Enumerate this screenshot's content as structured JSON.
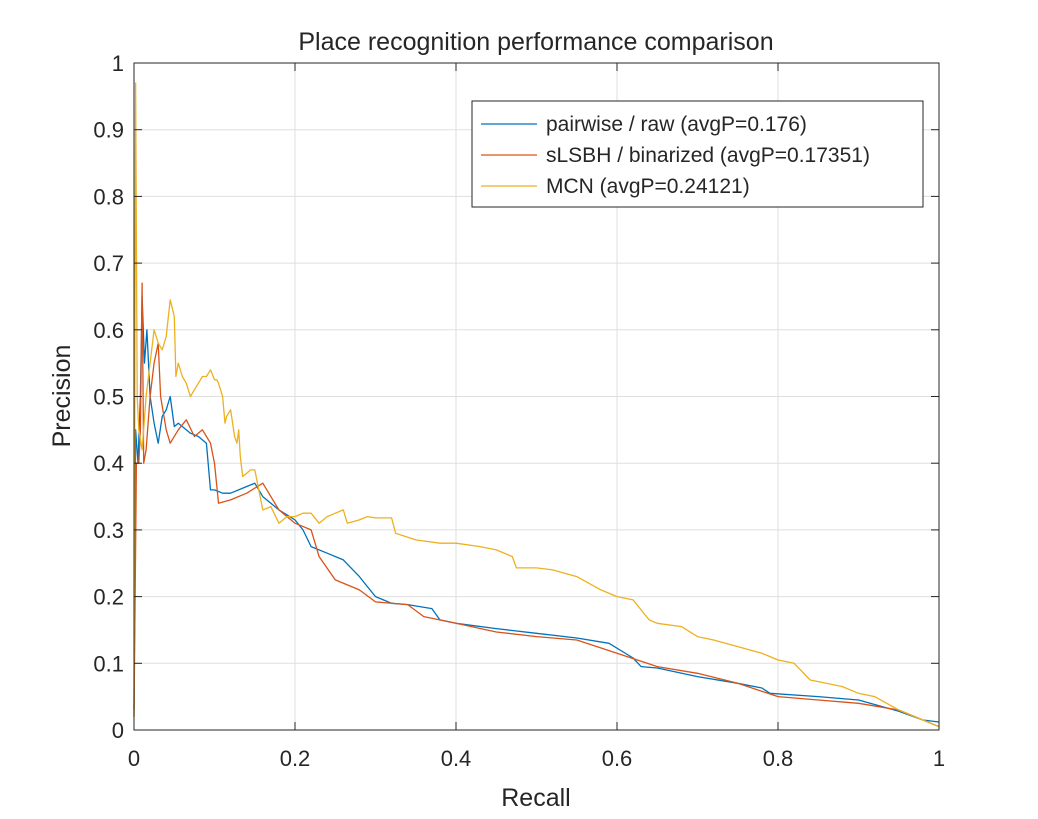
{
  "chart_data": {
    "type": "line",
    "title": "Place recognition performance comparison",
    "xlabel": "Recall",
    "ylabel": "Precision",
    "xlim": [
      0,
      1
    ],
    "ylim": [
      0,
      1
    ],
    "xticks": [
      0,
      0.2,
      0.4,
      0.6,
      0.8,
      1
    ],
    "xtick_labels": [
      "0",
      "0.2",
      "0.4",
      "0.6",
      "0.8",
      "1"
    ],
    "yticks": [
      0,
      0.1,
      0.2,
      0.3,
      0.4,
      0.5,
      0.6,
      0.7,
      0.8,
      0.9,
      1
    ],
    "ytick_labels": [
      "0",
      "0.1",
      "0.2",
      "0.3",
      "0.4",
      "0.5",
      "0.6",
      "0.7",
      "0.8",
      "0.9",
      "1"
    ],
    "grid": true,
    "legend_position": "top-right",
    "series": [
      {
        "name": "pairwise / raw (avgP=0.176)",
        "color": "#0072BD",
        "x": [
          0,
          0.002,
          0.005,
          0.008,
          0.01,
          0.013,
          0.016,
          0.02,
          0.025,
          0.03,
          0.035,
          0.04,
          0.045,
          0.05,
          0.055,
          0.06,
          0.07,
          0.08,
          0.09,
          0.095,
          0.1,
          0.11,
          0.12,
          0.14,
          0.15,
          0.16,
          0.18,
          0.2,
          0.21,
          0.22,
          0.24,
          0.26,
          0.28,
          0.29,
          0.3,
          0.32,
          0.34,
          0.37,
          0.38,
          0.4,
          0.45,
          0.5,
          0.55,
          0.59,
          0.62,
          0.63,
          0.65,
          0.7,
          0.75,
          0.78,
          0.79,
          0.85,
          0.9,
          0.93,
          0.95,
          0.98,
          1.0
        ],
        "y": [
          0.03,
          0.45,
          0.4,
          0.5,
          0.65,
          0.55,
          0.6,
          0.5,
          0.46,
          0.43,
          0.47,
          0.48,
          0.5,
          0.455,
          0.46,
          0.455,
          0.445,
          0.44,
          0.43,
          0.36,
          0.36,
          0.355,
          0.355,
          0.365,
          0.37,
          0.35,
          0.33,
          0.315,
          0.3,
          0.275,
          0.265,
          0.255,
          0.23,
          0.215,
          0.2,
          0.19,
          0.188,
          0.182,
          0.165,
          0.16,
          0.152,
          0.145,
          0.138,
          0.13,
          0.108,
          0.095,
          0.093,
          0.08,
          0.07,
          0.063,
          0.055,
          0.05,
          0.045,
          0.035,
          0.028,
          0.015,
          0.012
        ]
      },
      {
        "name": "sLSBH / binarized (avgP=0.17351)",
        "color": "#D95319",
        "x": [
          0,
          0.003,
          0.006,
          0.008,
          0.01,
          0.012,
          0.015,
          0.02,
          0.025,
          0.03,
          0.033,
          0.04,
          0.045,
          0.055,
          0.065,
          0.075,
          0.085,
          0.095,
          0.1,
          0.105,
          0.12,
          0.14,
          0.16,
          0.18,
          0.2,
          0.22,
          0.23,
          0.25,
          0.28,
          0.3,
          0.34,
          0.36,
          0.4,
          0.45,
          0.5,
          0.55,
          0.6,
          0.65,
          0.7,
          0.75,
          0.8,
          0.85,
          0.9,
          0.95,
          0.98,
          1.0
        ],
        "y": [
          0.02,
          0.4,
          0.4,
          0.45,
          0.67,
          0.4,
          0.42,
          0.5,
          0.55,
          0.58,
          0.5,
          0.45,
          0.43,
          0.45,
          0.465,
          0.44,
          0.45,
          0.43,
          0.4,
          0.34,
          0.345,
          0.355,
          0.37,
          0.33,
          0.31,
          0.3,
          0.26,
          0.225,
          0.21,
          0.192,
          0.188,
          0.17,
          0.16,
          0.147,
          0.14,
          0.135,
          0.115,
          0.095,
          0.085,
          0.07,
          0.05,
          0.045,
          0.04,
          0.03,
          0.015,
          0.005
        ]
      },
      {
        "name": "MCN (avgP=0.24121)",
        "color": "#EDB120",
        "x": [
          0,
          0.002,
          0.004,
          0.006,
          0.01,
          0.015,
          0.02,
          0.025,
          0.03,
          0.035,
          0.04,
          0.045,
          0.05,
          0.052,
          0.055,
          0.06,
          0.065,
          0.07,
          0.075,
          0.08,
          0.085,
          0.09,
          0.095,
          0.1,
          0.103,
          0.105,
          0.11,
          0.113,
          0.115,
          0.12,
          0.125,
          0.128,
          0.13,
          0.132,
          0.135,
          0.14,
          0.145,
          0.15,
          0.16,
          0.17,
          0.18,
          0.19,
          0.2,
          0.21,
          0.22,
          0.23,
          0.24,
          0.25,
          0.26,
          0.265,
          0.28,
          0.29,
          0.3,
          0.31,
          0.32,
          0.325,
          0.35,
          0.38,
          0.4,
          0.43,
          0.45,
          0.47,
          0.475,
          0.5,
          0.52,
          0.55,
          0.58,
          0.6,
          0.62,
          0.63,
          0.64,
          0.65,
          0.68,
          0.7,
          0.72,
          0.75,
          0.78,
          0.79,
          0.8,
          0.82,
          0.84,
          0.86,
          0.88,
          0.9,
          0.92,
          0.95,
          0.98,
          1.0
        ],
        "y": [
          0.02,
          0.97,
          0.5,
          0.45,
          0.42,
          0.5,
          0.55,
          0.6,
          0.58,
          0.57,
          0.59,
          0.645,
          0.62,
          0.53,
          0.55,
          0.53,
          0.52,
          0.5,
          0.51,
          0.52,
          0.53,
          0.53,
          0.54,
          0.525,
          0.525,
          0.52,
          0.5,
          0.46,
          0.47,
          0.48,
          0.44,
          0.43,
          0.45,
          0.41,
          0.38,
          0.385,
          0.39,
          0.39,
          0.33,
          0.335,
          0.31,
          0.32,
          0.32,
          0.325,
          0.325,
          0.31,
          0.32,
          0.325,
          0.33,
          0.31,
          0.315,
          0.32,
          0.318,
          0.318,
          0.318,
          0.295,
          0.285,
          0.28,
          0.28,
          0.275,
          0.27,
          0.26,
          0.243,
          0.243,
          0.24,
          0.23,
          0.21,
          0.2,
          0.195,
          0.18,
          0.165,
          0.16,
          0.155,
          0.14,
          0.135,
          0.125,
          0.115,
          0.11,
          0.105,
          0.1,
          0.075,
          0.07,
          0.065,
          0.055,
          0.05,
          0.03,
          0.015,
          0.005
        ]
      }
    ]
  }
}
